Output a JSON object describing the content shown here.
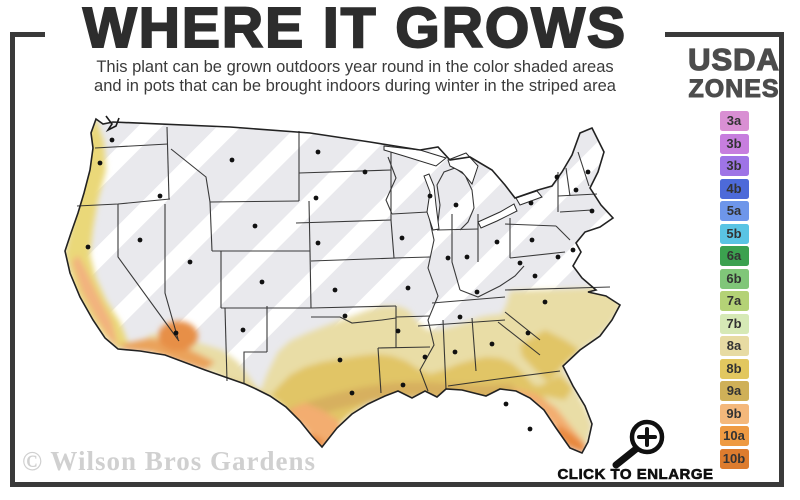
{
  "header": {
    "title": "WHERE IT GROWS",
    "subtitle_line1": "This plant can be grown outdoors year round in the color shaded areas",
    "subtitle_line2": "and in pots that can be brought indoors during winter in the striped area"
  },
  "legend": {
    "title_top": "USDA",
    "title_bottom": "ZONES",
    "zones": [
      {
        "label": "3a",
        "color": "#d98fd3"
      },
      {
        "label": "3b",
        "color": "#c77ede"
      },
      {
        "label": "3b",
        "color": "#9e74e6"
      },
      {
        "label": "4b",
        "color": "#4d6ad9"
      },
      {
        "label": "5a",
        "color": "#6e96ea"
      },
      {
        "label": "5b",
        "color": "#5ac4e4"
      },
      {
        "label": "6a",
        "color": "#3ba14f"
      },
      {
        "label": "6b",
        "color": "#80c679"
      },
      {
        "label": "7a",
        "color": "#b4d276"
      },
      {
        "label": "7b",
        "color": "#d6e9b6"
      },
      {
        "label": "8a",
        "color": "#e7dba3"
      },
      {
        "label": "8b",
        "color": "#e2c75f"
      },
      {
        "label": "9a",
        "color": "#cfb058"
      },
      {
        "label": "9b",
        "color": "#f4b87b"
      },
      {
        "label": "10a",
        "color": "#ee9a42"
      },
      {
        "label": "10b",
        "color": "#dd7c2e"
      }
    ]
  },
  "map": {
    "watermark": "© Wilson Bros Gardens",
    "colors": {
      "stripe_base": "#e9e9ed",
      "stripe_white": "#ffffff",
      "coast_yellow": "#ead879",
      "valley_peach": "#f2b37e",
      "socal_orange": "#eaa35c",
      "az_orange": "#e78f46",
      "band_pale": "#e9dda6",
      "band_gold": "#e1c566",
      "band_tan": "#d7b05e",
      "tx_peach": "#f3ad6f",
      "tx_orange": "#e98c42",
      "fl_peach": "#f3ad6f",
      "fl_orange": "#e8883c",
      "outline": "#222222",
      "state_line": "#2b2b2b",
      "dot": "#111111",
      "frame": "#3a3a3a"
    }
  },
  "footer": {
    "enlarge_label": "CLICK TO ENLARGE",
    "enlarge_icon": "magnifier-zoom-in-icon"
  }
}
